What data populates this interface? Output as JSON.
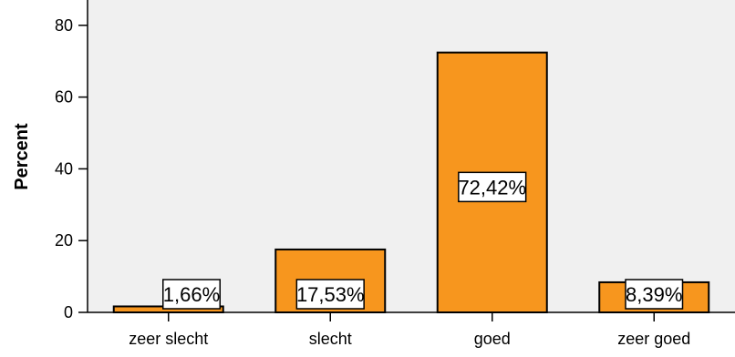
{
  "chart_data": {
    "type": "bar",
    "categories": [
      "zeer slecht",
      "slecht",
      "goed",
      "zeer goed"
    ],
    "values": [
      1.66,
      17.53,
      72.42,
      8.39
    ],
    "data_labels": [
      "1,66%",
      "17,53%",
      "72,42%",
      "8,39%"
    ],
    "yticks": [
      0,
      20,
      40,
      60,
      80
    ],
    "ytick_labels": [
      "0",
      "20",
      "40",
      "60",
      "80"
    ],
    "ylim": [
      0,
      85
    ],
    "ylabel": "Percent",
    "xlabel": "",
    "title": "",
    "grid": false,
    "colors": {
      "bar": "#F7961E",
      "plot_bg": "#F0F0F0",
      "border": "#000000"
    }
  }
}
